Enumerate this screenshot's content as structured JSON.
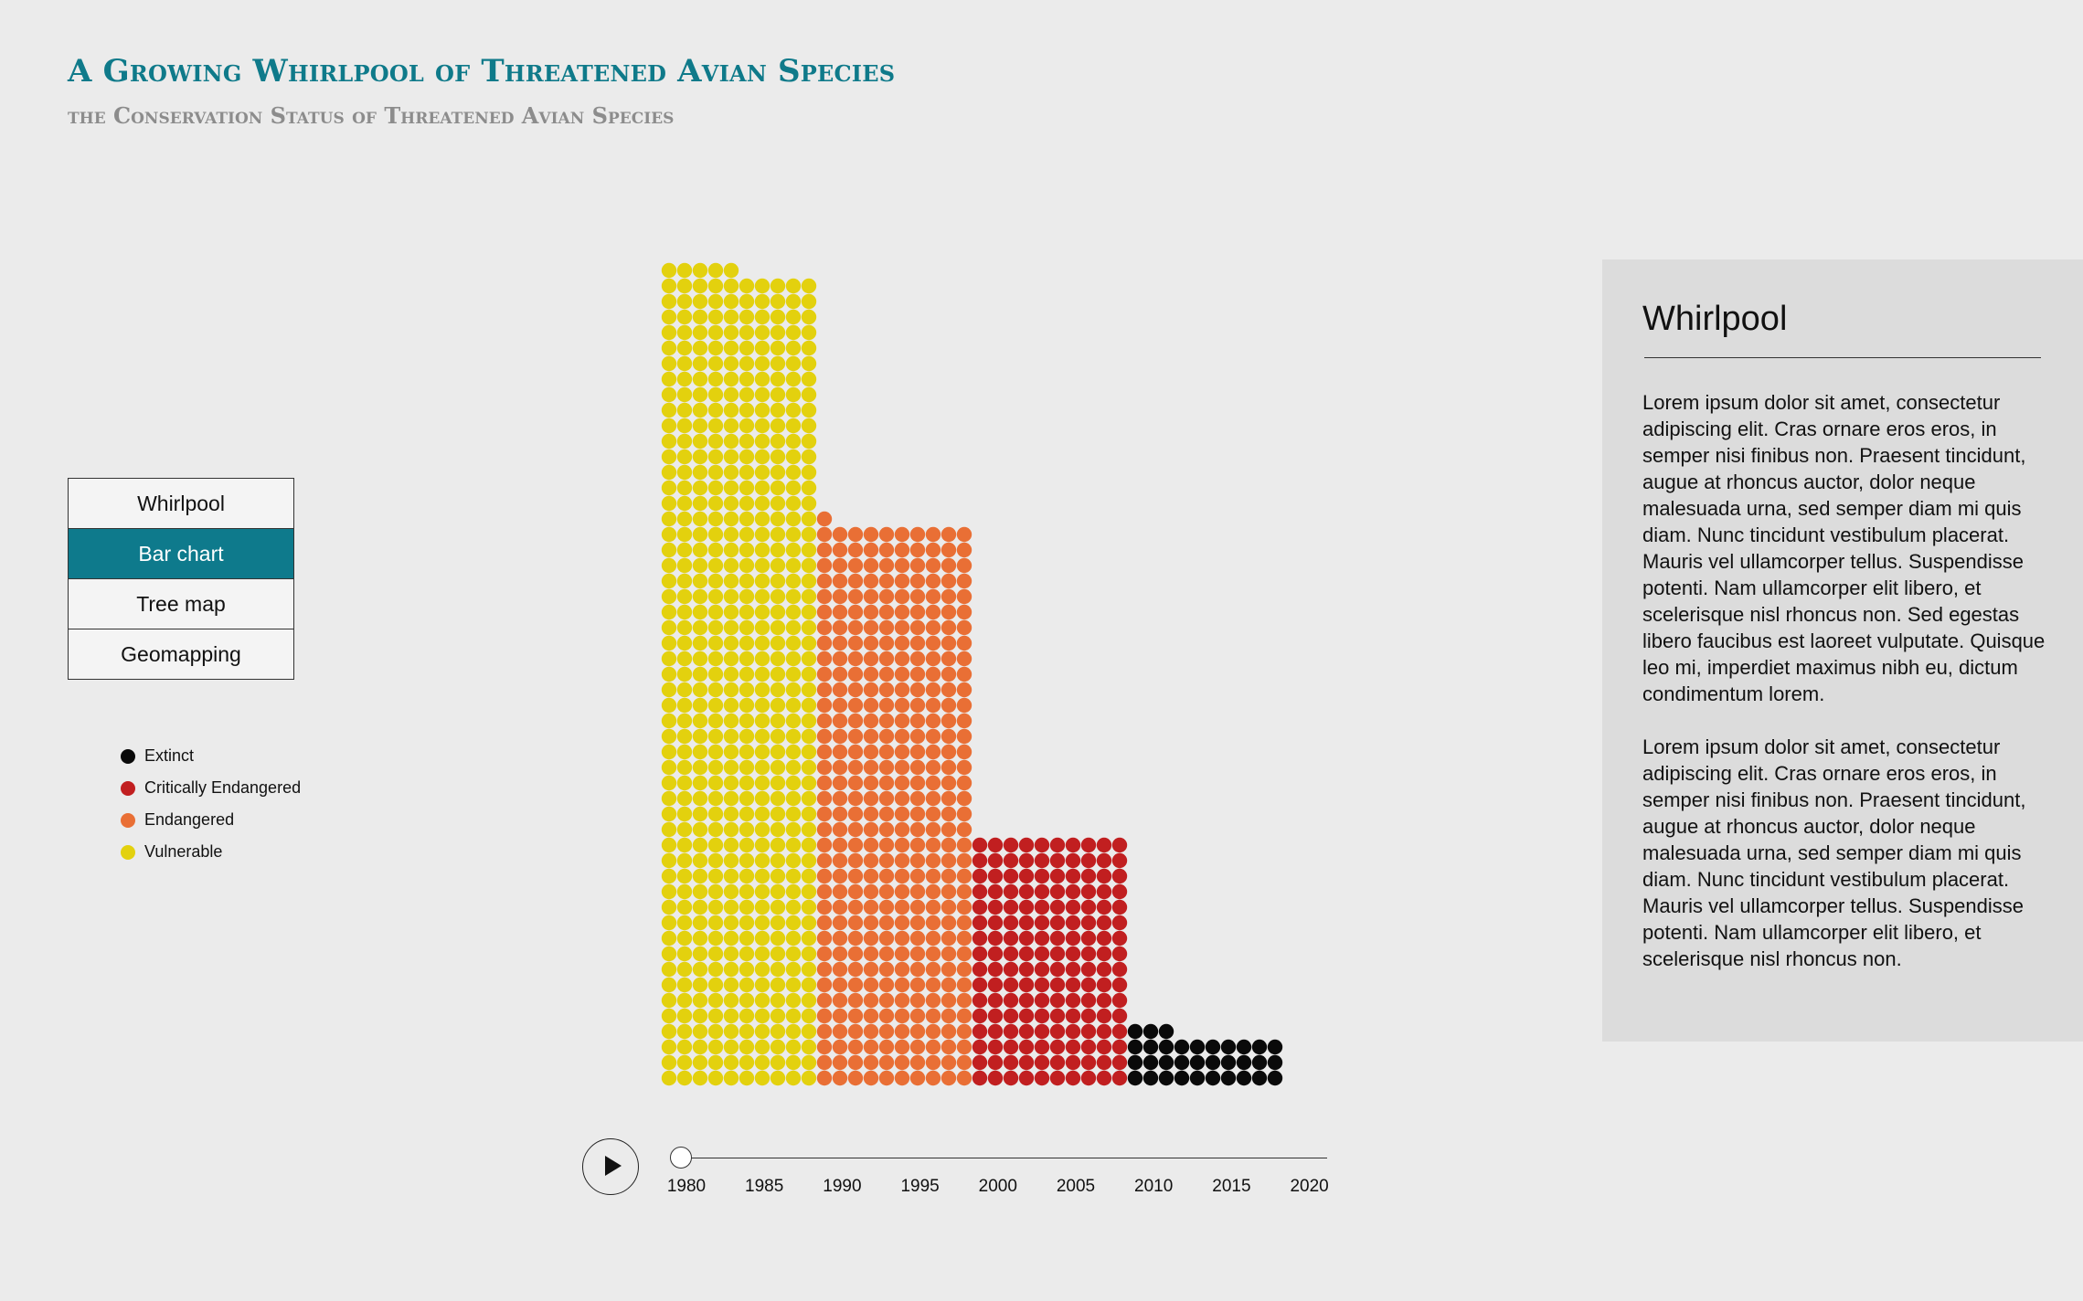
{
  "header": {
    "title": "A Growing Whirlpool of Threatened Avian Species",
    "subtitle": "the Conservation Status of Threatened Avian Species"
  },
  "views": [
    {
      "label": "Whirlpool",
      "active": false
    },
    {
      "label": "Bar chart",
      "active": true
    },
    {
      "label": "Tree map",
      "active": false
    },
    {
      "label": "Geomapping",
      "active": false
    }
  ],
  "legend": [
    {
      "label": "Extinct",
      "color": "#0a0a0a"
    },
    {
      "label": "Critically Endangered",
      "color": "#c11f20"
    },
    {
      "label": "Endangered",
      "color": "#e96f35"
    },
    {
      "label": "Vulnerable",
      "color": "#e3d10e"
    }
  ],
  "panel": {
    "title": "Whirlpool",
    "paragraphs": [
      "Lorem ipsum dolor sit amet, consectetur adipiscing elit. Cras ornare eros eros, in semper nisi finibus non. Praesent tincidunt, augue at rhoncus auctor, dolor neque malesuada urna, sed semper diam mi quis diam. Nunc tincidunt vestibulum placerat. Mauris vel ullamcorper tellus. Suspendisse potenti. Nam ullamcorper elit libero, et scelerisque nisl rhoncus non. Sed egestas libero faucibus est laoreet vulputate. Quisque leo mi, imperdiet maximus nibh eu, dictum condimentum lorem.",
      "Lorem ipsum dolor sit amet, consectetur adipiscing elit. Cras ornare eros eros, in semper nisi finibus non. Praesent tincidunt, augue at rhoncus auctor, dolor neque malesuada urna, sed semper diam mi quis diam. Nunc tincidunt vestibulum placerat. Mauris vel ullamcorper tellus. Suspendisse potenti. Nam ullamcorper elit libero, et scelerisque nisl rhoncus non."
    ]
  },
  "timeline": {
    "play_icon": "play-icon",
    "years": [
      "1980",
      "1985",
      "1990",
      "1995",
      "2000",
      "2005",
      "2010",
      "2015",
      "2020"
    ],
    "selected_year": "1980"
  },
  "chart_data": {
    "type": "bar",
    "unit_chart": true,
    "categories": [
      "Vulnerable",
      "Endangered",
      "Critically Endangered",
      "Extinct"
    ],
    "values": [
      525,
      361,
      160,
      33
    ],
    "colors": [
      "#e3d10e",
      "#e96f35",
      "#c11f20",
      "#0a0a0a"
    ],
    "grid": false,
    "legend_position": "left"
  }
}
